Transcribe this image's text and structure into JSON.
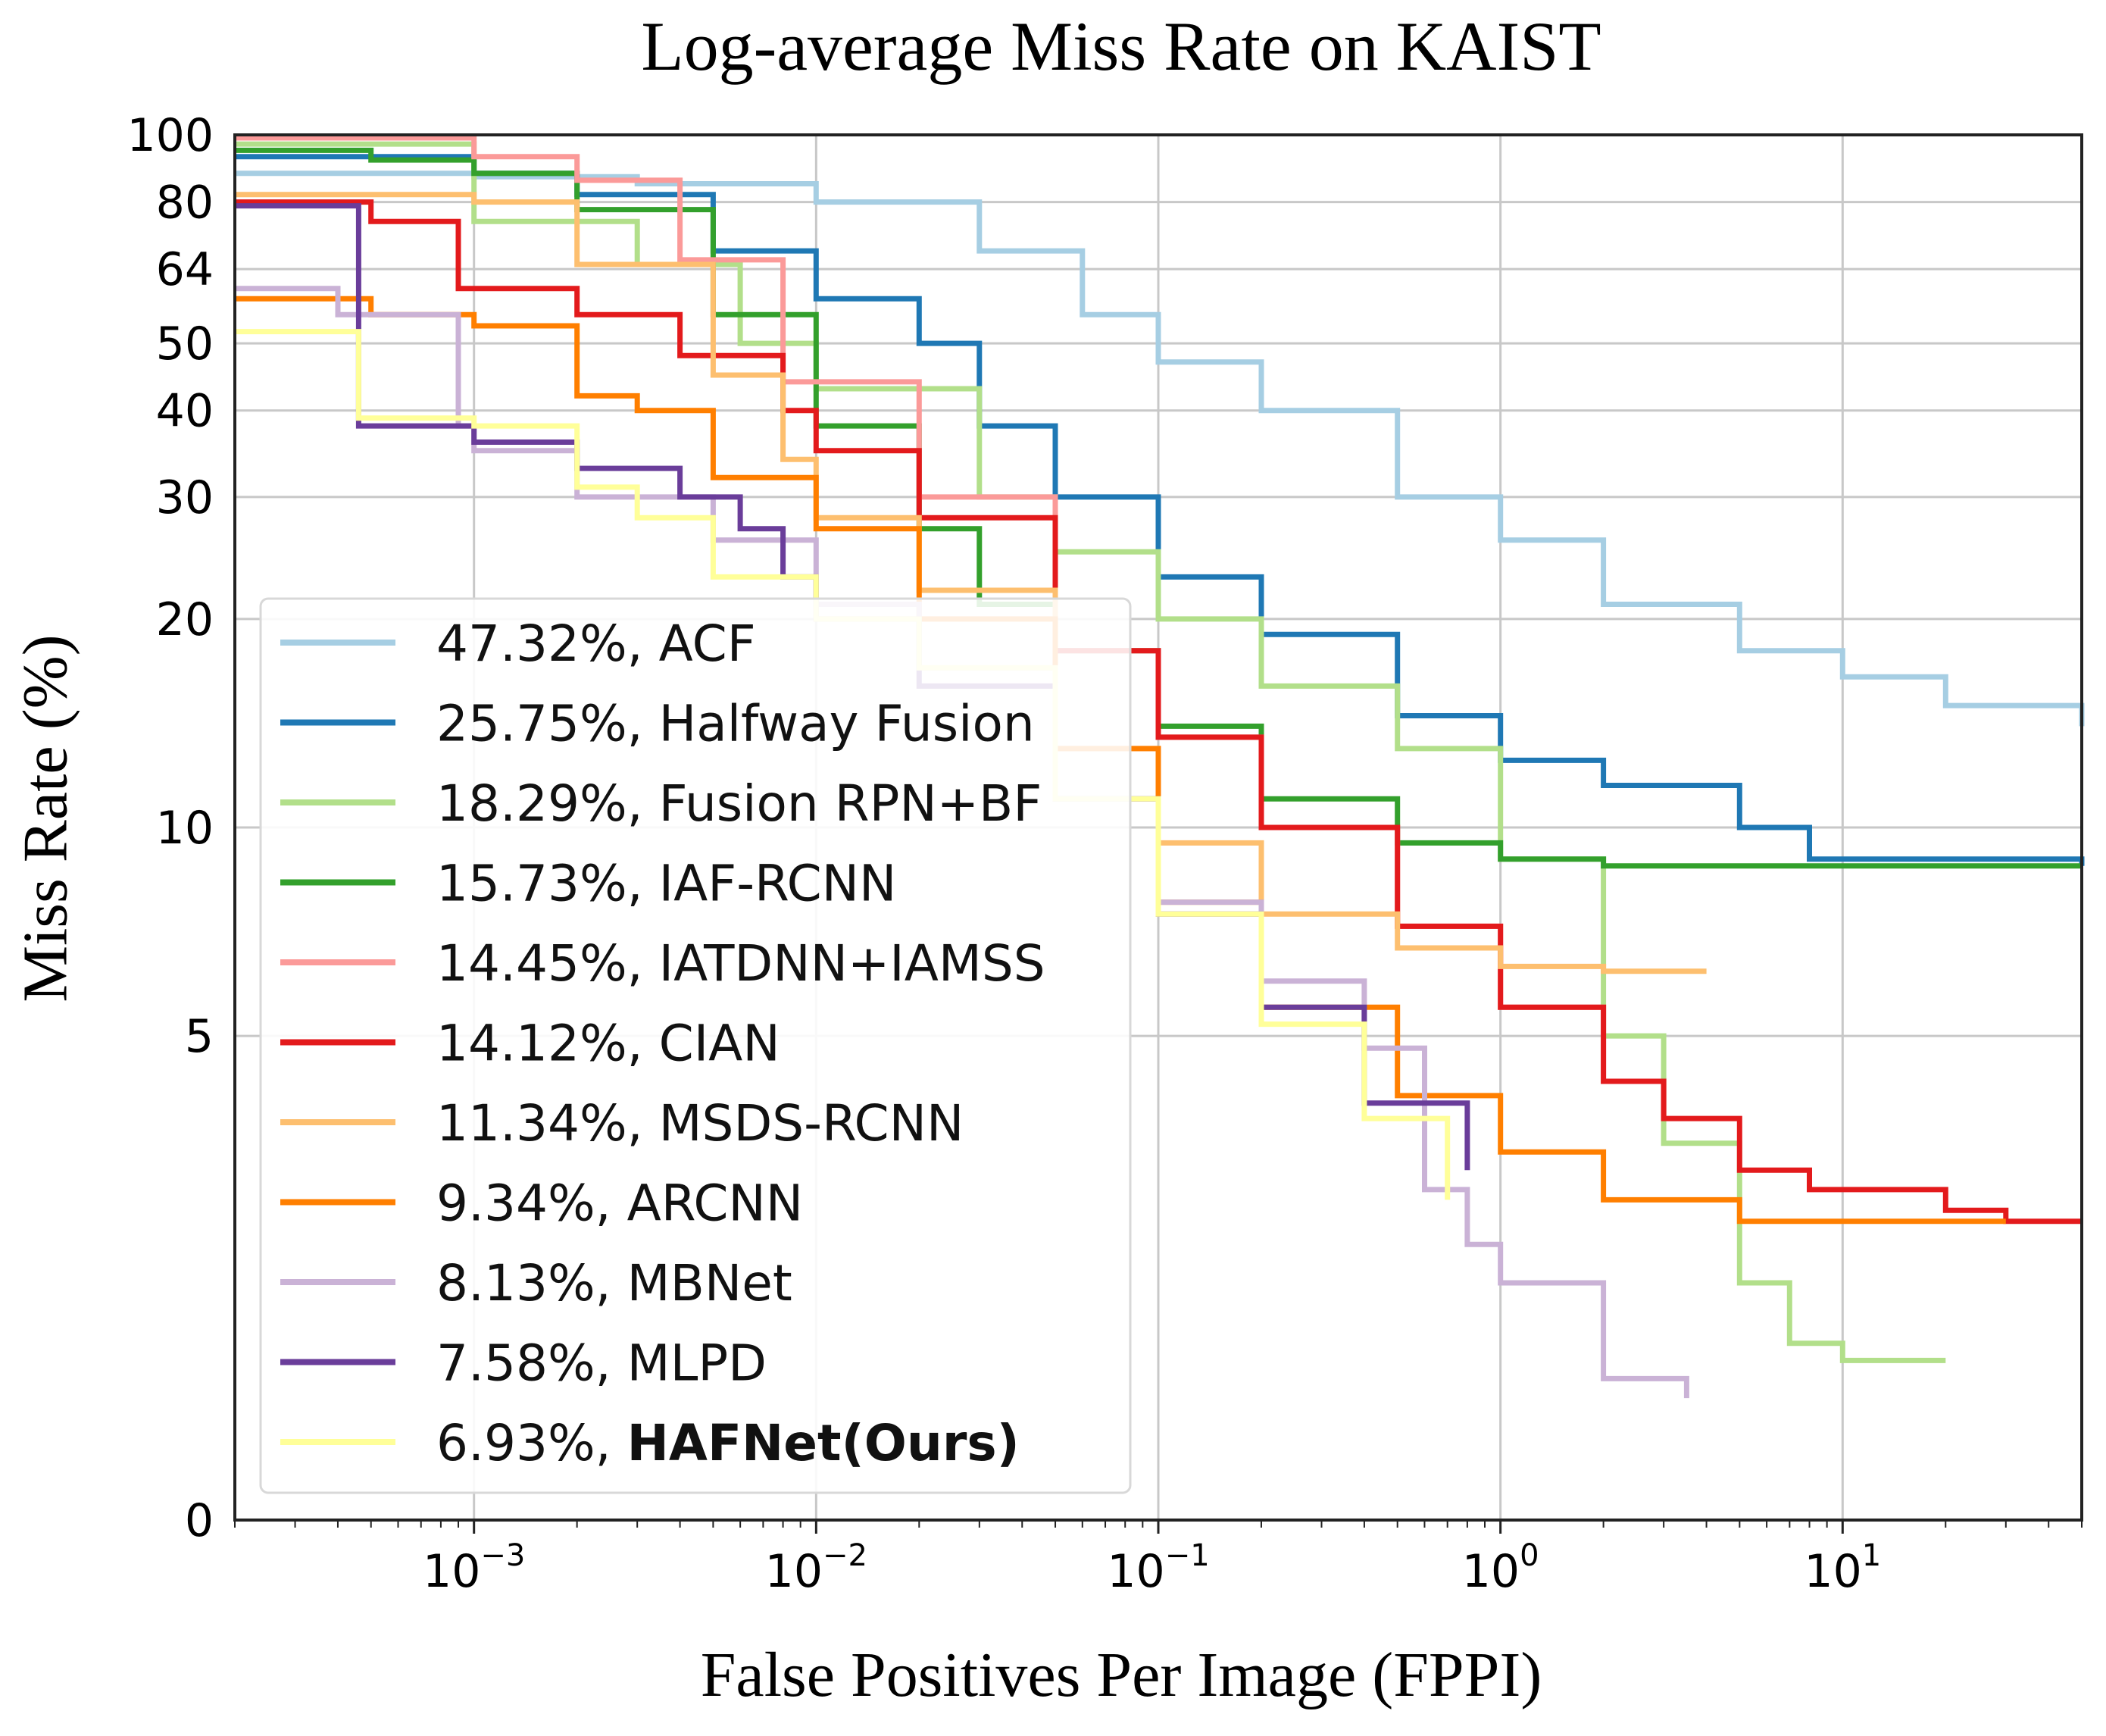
{
  "chart_data": {
    "type": "line",
    "title": "Log-average Miss Rate on KAIST",
    "xlabel": "False Positives Per Image (FPPI)",
    "ylabel": "Miss Rate (%)",
    "x_scale": "log",
    "xlim": [
      0.0002,
      50
    ],
    "x_ticks": [
      {
        "base": "10",
        "exp": "−3",
        "value": 0.001
      },
      {
        "base": "10",
        "exp": "−2",
        "value": 0.01
      },
      {
        "base": "10",
        "exp": "−1",
        "value": 0.1
      },
      {
        "base": "10",
        "exp": "0",
        "value": 1
      },
      {
        "base": "10",
        "exp": "1",
        "value": 10
      }
    ],
    "y_scale": "log",
    "ylim": [
      1,
      100
    ],
    "y_ticks": [
      {
        "label": "100",
        "value": 100
      },
      {
        "label": "80",
        "value": 80
      },
      {
        "label": "64",
        "value": 64
      },
      {
        "label": "50",
        "value": 50
      },
      {
        "label": "40",
        "value": 40
      },
      {
        "label": "30",
        "value": 30
      },
      {
        "label": "20",
        "value": 20
      },
      {
        "label": "10",
        "value": 10
      },
      {
        "label": "5",
        "value": 5
      },
      {
        "label": "0",
        "value": 1
      }
    ],
    "grid": true,
    "legend_position": "lower-left",
    "series": [
      {
        "name": "ACF",
        "label": "47.32%, ACF",
        "score": "47.32%",
        "color": "#a6cee3",
        "x": [
          0.0002,
          0.001,
          0.003,
          0.01,
          0.03,
          0.06,
          0.1,
          0.2,
          0.5,
          1,
          2,
          5,
          10,
          20,
          50
        ],
        "y": [
          88,
          87,
          85,
          80,
          68,
          55,
          47,
          40,
          30,
          26,
          21,
          18,
          16.5,
          15,
          14
        ]
      },
      {
        "name": "Halfway Fusion",
        "label": "25.75%, Halfway Fusion",
        "score": "25.75%",
        "color": "#1f78b4",
        "x": [
          0.0002,
          0.001,
          0.002,
          0.005,
          0.01,
          0.02,
          0.03,
          0.05,
          0.1,
          0.2,
          0.5,
          1,
          2,
          5,
          8,
          20,
          50
        ],
        "y": [
          93,
          88,
          82,
          68,
          58,
          50,
          38,
          30,
          23,
          19,
          14.5,
          12.5,
          11.5,
          10,
          9,
          9,
          8.8
        ]
      },
      {
        "name": "Fusion RPN+BF",
        "label": "18.29%, Fusion RPN+BF",
        "score": "18.29%",
        "color": "#b2df8a",
        "x": [
          0.0002,
          0.001,
          0.003,
          0.006,
          0.01,
          0.03,
          0.05,
          0.1,
          0.2,
          0.5,
          1,
          2,
          3,
          5,
          7,
          10,
          20
        ],
        "y": [
          97,
          75,
          65,
          50,
          43,
          30,
          25,
          20,
          16,
          13,
          9,
          5,
          3.5,
          2.2,
          1.8,
          1.7,
          1.7
        ]
      },
      {
        "name": "IAF-RCNN",
        "label": "15.73%, IAF-RCNN",
        "score": "15.73%",
        "color": "#33a02c",
        "x": [
          0.0002,
          0.0005,
          0.001,
          0.002,
          0.005,
          0.01,
          0.02,
          0.03,
          0.05,
          0.1,
          0.2,
          0.5,
          1,
          2,
          5,
          10,
          50
        ],
        "y": [
          95,
          92,
          88,
          78,
          55,
          38,
          27,
          21,
          18,
          14,
          11,
          9.5,
          9,
          8.8,
          8.8,
          8.8,
          8.8
        ]
      },
      {
        "name": "IATDNN+IAMSS",
        "label": "14.45%, IATDNN+IAMSS",
        "score": "14.45%",
        "color": "#fb9a99",
        "x": [
          0.0002,
          0.0005,
          0.001,
          0.002,
          0.004,
          0.008,
          0.02,
          0.05,
          0.1,
          0.2,
          0.5,
          1,
          2,
          3
        ],
        "y": [
          99,
          99,
          93,
          86,
          66,
          44,
          30,
          18,
          13.5,
          10,
          7.2,
          5.5,
          4.3,
          3.8
        ]
      },
      {
        "name": "CIAN",
        "label": "14.12%, CIAN",
        "score": "14.12%",
        "color": "#e31a1c",
        "x": [
          0.0002,
          0.0005,
          0.0009,
          0.002,
          0.004,
          0.008,
          0.01,
          0.02,
          0.05,
          0.1,
          0.2,
          0.5,
          1,
          2,
          3,
          5,
          8,
          20,
          30,
          50
        ],
        "y": [
          80,
          75,
          60,
          55,
          48,
          40,
          35,
          28,
          18,
          13.5,
          10,
          7.2,
          5.5,
          4.3,
          3.8,
          3.2,
          3,
          2.8,
          2.7,
          2.7
        ]
      },
      {
        "name": "MSDS-RCNN",
        "label": "11.34%, MSDS-RCNN",
        "score": "11.34%",
        "color": "#fdbf6f",
        "x": [
          0.0002,
          0.001,
          0.002,
          0.005,
          0.008,
          0.01,
          0.02,
          0.05,
          0.1,
          0.2,
          0.5,
          1,
          2,
          4
        ],
        "y": [
          82,
          80,
          65,
          45,
          34,
          28,
          22,
          13,
          9.5,
          7.5,
          6.7,
          6.3,
          6.2,
          6.2
        ]
      },
      {
        "name": "ARCNN",
        "label": "9.34%, ARCNN",
        "score": "9.34%",
        "color": "#ff7f00",
        "x": [
          0.0002,
          0.0005,
          0.001,
          0.002,
          0.003,
          0.005,
          0.01,
          0.02,
          0.05,
          0.1,
          0.2,
          0.5,
          1,
          2,
          5,
          10,
          30
        ],
        "y": [
          58,
          55,
          53,
          42,
          40,
          32,
          27,
          20,
          13,
          7.8,
          5.5,
          4.1,
          3.4,
          2.9,
          2.7,
          2.7,
          2.7
        ]
      },
      {
        "name": "MBNet",
        "label": "8.13%, MBNet",
        "score": "8.13%",
        "color": "#cab2d6",
        "x": [
          0.0002,
          0.0004,
          0.0009,
          0.001,
          0.002,
          0.005,
          0.01,
          0.02,
          0.05,
          0.1,
          0.2,
          0.4,
          0.6,
          0.8,
          1,
          2,
          3.5
        ],
        "y": [
          60,
          55,
          38,
          35,
          30,
          26,
          21,
          17,
          11,
          7.8,
          6,
          4.8,
          3,
          2.5,
          2.2,
          1.6,
          1.5
        ]
      },
      {
        "name": "MLPD",
        "label": "7.58%, MLPD",
        "score": "7.58%",
        "color": "#6a3d9a",
        "x": [
          0.0002,
          0.00045,
          0.00046,
          0.001,
          0.002,
          0.004,
          0.006,
          0.008,
          0.01,
          0.02,
          0.05,
          0.1,
          0.2,
          0.4,
          0.8
        ],
        "y": [
          79,
          79,
          38,
          36,
          33,
          30,
          27,
          23,
          20,
          16,
          11,
          7.5,
          5.5,
          4,
          3.2
        ]
      },
      {
        "name": "HAFNet(Ours)",
        "label_prefix": "6.93%, ",
        "label_name": "HAFNet(Ours)",
        "score": "6.93%",
        "color": "#ffff99",
        "x": [
          0.0002,
          0.00045,
          0.00046,
          0.001,
          0.002,
          0.003,
          0.005,
          0.01,
          0.02,
          0.05,
          0.1,
          0.2,
          0.4,
          0.7
        ],
        "y": [
          52,
          52,
          39,
          38,
          31,
          28,
          23,
          20,
          17,
          11,
          7.5,
          5.2,
          3.8,
          2.9
        ]
      }
    ]
  }
}
